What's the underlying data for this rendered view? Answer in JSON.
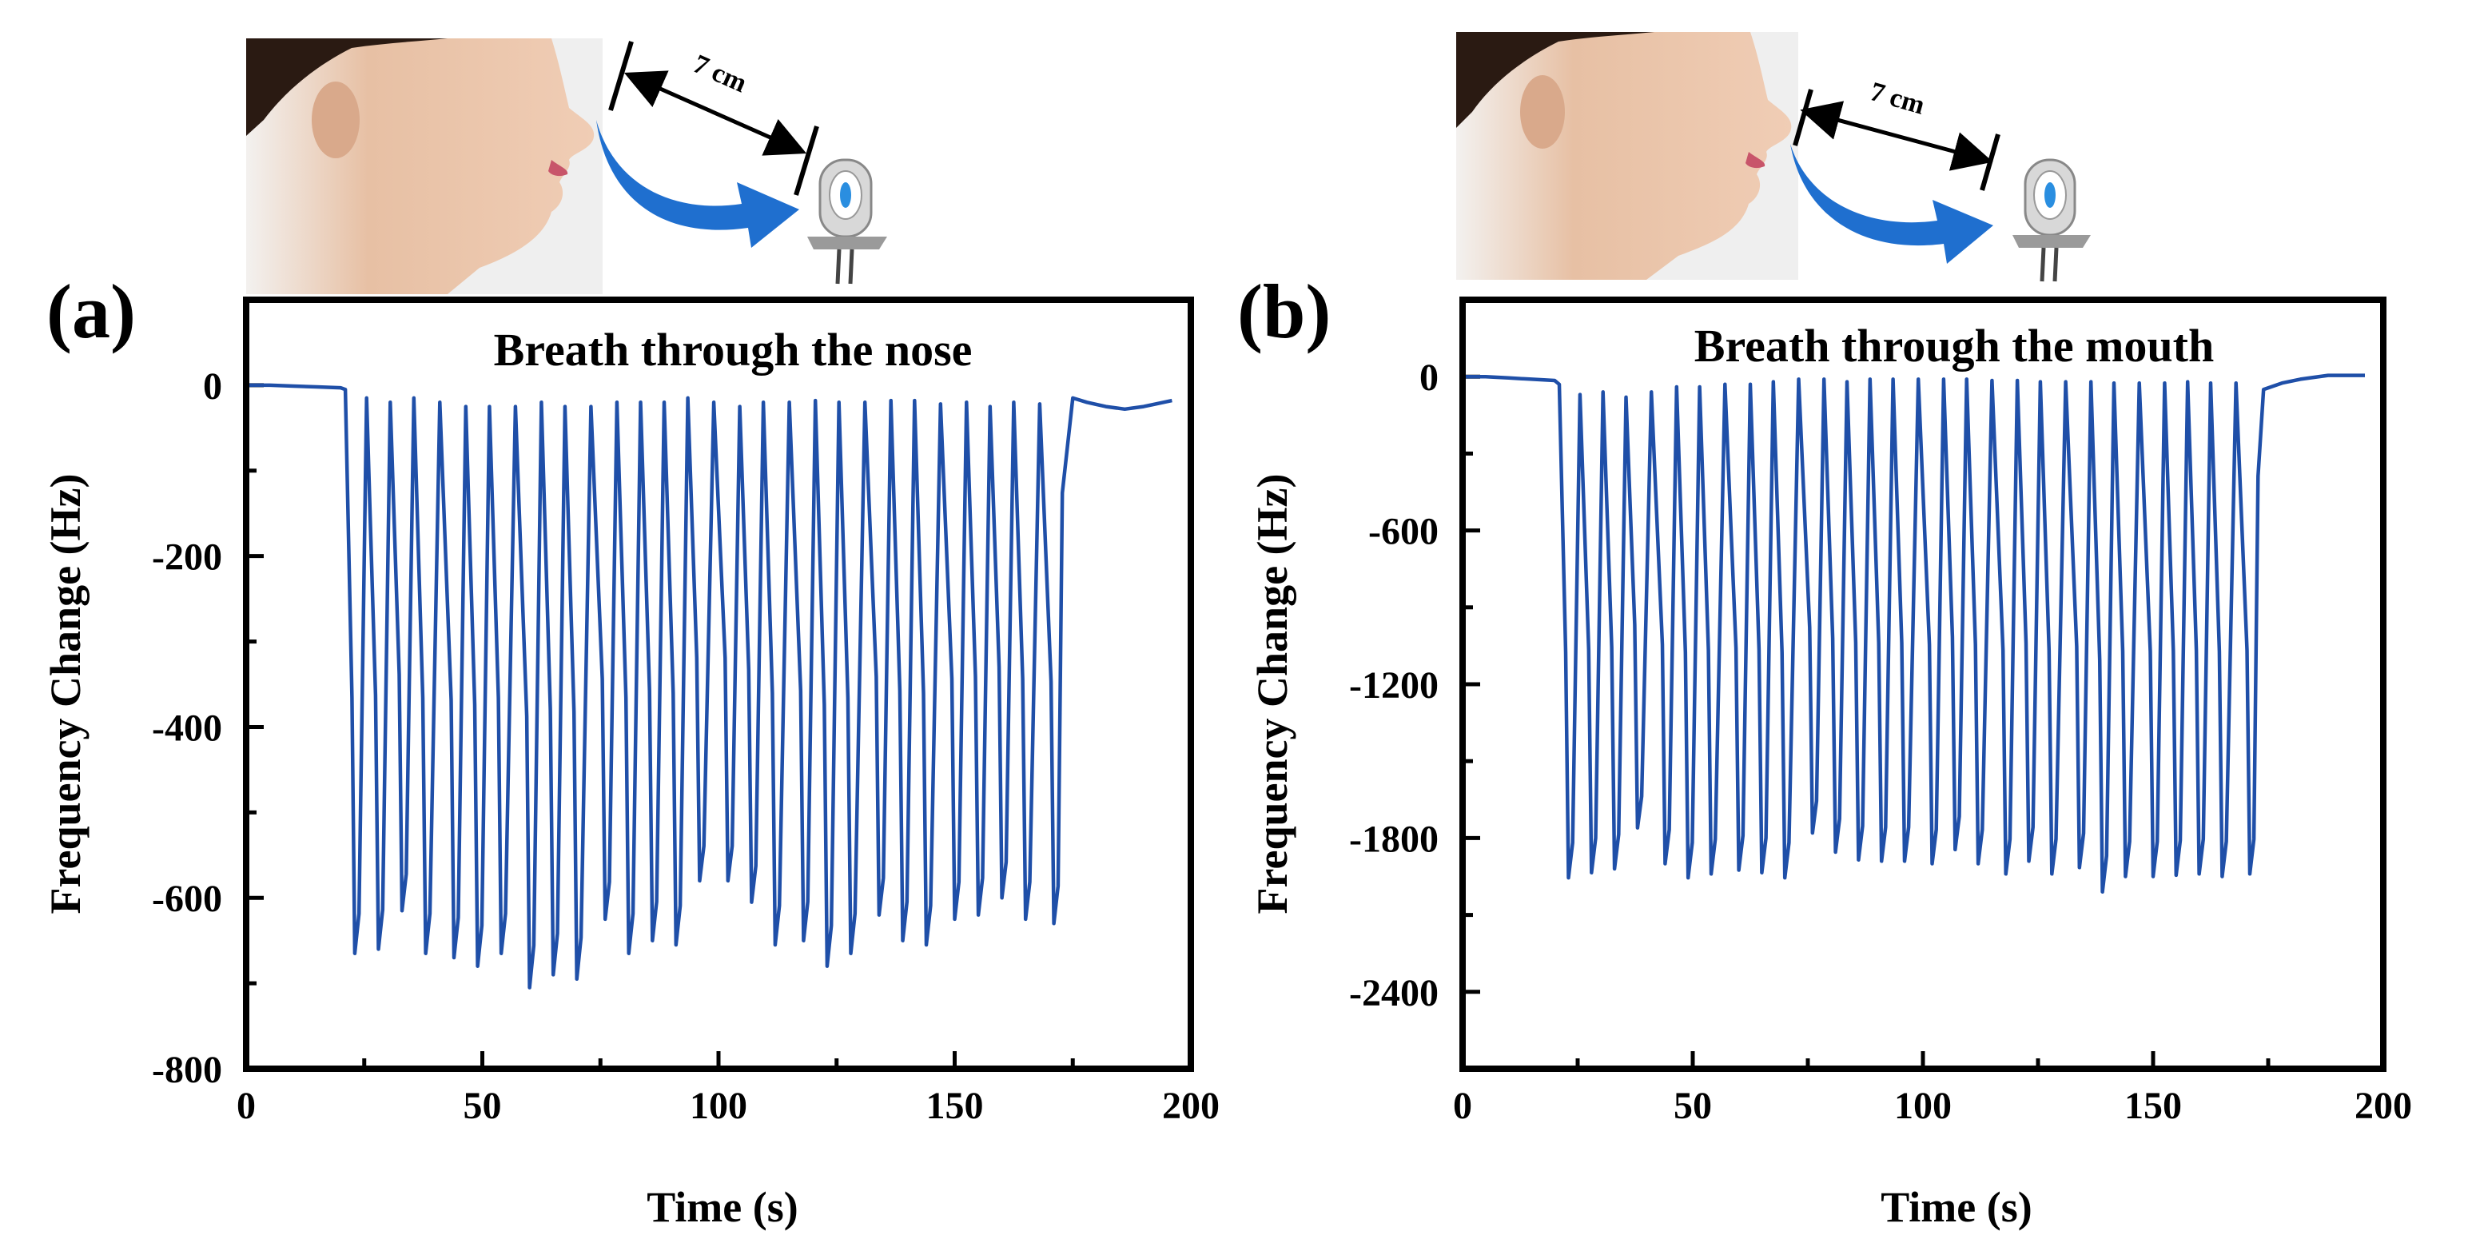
{
  "colors": {
    "line": "#1f4fa8",
    "arrow": "#1f6fcf",
    "axis": "#000000",
    "skin": "#e9c3a8",
    "background_photo": "#efefef"
  },
  "chart_data": [
    {
      "id": "a",
      "type": "line",
      "panel_label": "(a)",
      "title": "Breath through the nose",
      "xlabel": "Time (s)",
      "ylabel": "Frequency Change (Hz)",
      "xlim": [
        0,
        200
      ],
      "ylim": [
        -800,
        100
      ],
      "xticks": [
        0,
        50,
        100,
        150,
        200
      ],
      "yticks": [
        0,
        -200,
        -400,
        -600,
        -800
      ],
      "distance_label": "7 cm",
      "series": [
        {
          "name": "nose",
          "baseline_start": [
            [
              0,
              0
            ],
            [
              5,
              0
            ],
            [
              10,
              -1
            ],
            [
              15,
              -2
            ],
            [
              20,
              -3
            ],
            [
              21,
              -5
            ]
          ],
          "cycles": [
            {
              "t": 23,
              "min": -665
            },
            {
              "t": 28,
              "min": -660
            },
            {
              "t": 33,
              "min": -615
            },
            {
              "t": 38,
              "min": -665
            },
            {
              "t": 44,
              "min": -670
            },
            {
              "t": 49,
              "min": -680
            },
            {
              "t": 54,
              "min": -665
            },
            {
              "t": 60,
              "min": -705
            },
            {
              "t": 65,
              "min": -690
            },
            {
              "t": 70,
              "min": -695
            },
            {
              "t": 76,
              "min": -625
            },
            {
              "t": 81,
              "min": -665
            },
            {
              "t": 86,
              "min": -650
            },
            {
              "t": 91,
              "min": -655
            },
            {
              "t": 96,
              "min": -580
            },
            {
              "t": 102,
              "min": -580
            },
            {
              "t": 107,
              "min": -605
            },
            {
              "t": 112,
              "min": -655
            },
            {
              "t": 118,
              "min": -650
            },
            {
              "t": 123,
              "min": -680
            },
            {
              "t": 128,
              "min": -665
            },
            {
              "t": 134,
              "min": -620
            },
            {
              "t": 139,
              "min": -650
            },
            {
              "t": 144,
              "min": -655
            },
            {
              "t": 150,
              "min": -625
            },
            {
              "t": 155,
              "min": -620
            },
            {
              "t": 160,
              "min": -600
            },
            {
              "t": 165,
              "min": -625
            },
            {
              "t": 171,
              "min": -630
            }
          ],
          "peaks": [
            -15,
            -20,
            -15,
            -20,
            -25,
            -25,
            -25,
            -20,
            -25,
            -25,
            -20,
            -20,
            -20,
            -15,
            -20,
            -25,
            -20,
            -20,
            -18,
            -20,
            -20,
            -18,
            -18,
            -22,
            -20,
            -25,
            -20,
            -22
          ],
          "baseline_end": [
            [
              175,
              -15
            ],
            [
              178,
              -20
            ],
            [
              182,
              -25
            ],
            [
              186,
              -28
            ],
            [
              190,
              -25
            ],
            [
              196,
              -18
            ]
          ]
        }
      ]
    },
    {
      "id": "b",
      "type": "line",
      "panel_label": "(b)",
      "title": "Breath through the mouth",
      "xlabel": "Time (s)",
      "ylabel": "Frequency Change (Hz)",
      "xlim": [
        0,
        200
      ],
      "ylim": [
        -2700,
        300
      ],
      "xticks": [
        0,
        50,
        100,
        150,
        200
      ],
      "yticks": [
        0,
        -600,
        -1200,
        -1800,
        -2400
      ],
      "distance_label": "7 cm",
      "series": [
        {
          "name": "mouth",
          "baseline_start": [
            [
              0,
              0
            ],
            [
              5,
              0
            ],
            [
              10,
              -5
            ],
            [
              15,
              -10
            ],
            [
              20,
              -15
            ],
            [
              21,
              -30
            ]
          ],
          "cycles": [
            {
              "t": 23,
              "min": -1955
            },
            {
              "t": 28,
              "min": -1935
            },
            {
              "t": 33,
              "min": -1920
            },
            {
              "t": 38,
              "min": -1760
            },
            {
              "t": 44,
              "min": -1900
            },
            {
              "t": 49,
              "min": -1955
            },
            {
              "t": 54,
              "min": -1940
            },
            {
              "t": 60,
              "min": -1925
            },
            {
              "t": 65,
              "min": -1935
            },
            {
              "t": 70,
              "min": -1955
            },
            {
              "t": 76,
              "min": -1780
            },
            {
              "t": 81,
              "min": -1855
            },
            {
              "t": 86,
              "min": -1885
            },
            {
              "t": 91,
              "min": -1890
            },
            {
              "t": 96,
              "min": -1890
            },
            {
              "t": 102,
              "min": -1900
            },
            {
              "t": 107,
              "min": -1845
            },
            {
              "t": 112,
              "min": -1900
            },
            {
              "t": 118,
              "min": -1940
            },
            {
              "t": 123,
              "min": -1890
            },
            {
              "t": 128,
              "min": -1940
            },
            {
              "t": 134,
              "min": -1915
            },
            {
              "t": 139,
              "min": -2010
            },
            {
              "t": 144,
              "min": -1950
            },
            {
              "t": 150,
              "min": -1950
            },
            {
              "t": 155,
              "min": -1945
            },
            {
              "t": 160,
              "min": -1940
            },
            {
              "t": 165,
              "min": -1950
            },
            {
              "t": 171,
              "min": -1940
            }
          ],
          "peaks": [
            -70,
            -60,
            -80,
            -60,
            -40,
            -40,
            -30,
            -30,
            -20,
            -10,
            -10,
            -20,
            -10,
            -10,
            -10,
            -10,
            -10,
            -15,
            -15,
            -20,
            -20,
            -20,
            -25,
            -25,
            -25,
            -20,
            -25,
            -25
          ],
          "baseline_end": [
            [
              174,
              -50
            ],
            [
              178,
              -25
            ],
            [
              182,
              -10
            ],
            [
              188,
              5
            ],
            [
              196,
              5
            ]
          ]
        }
      ]
    }
  ]
}
